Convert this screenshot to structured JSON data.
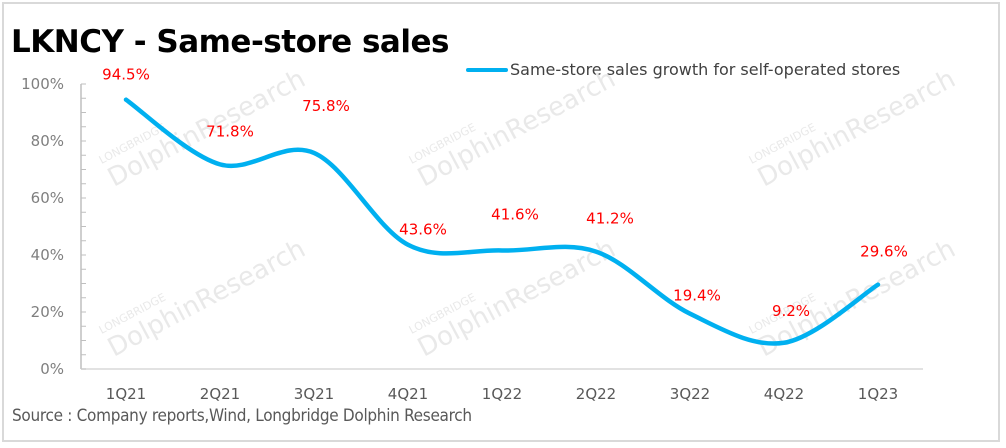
{
  "title": "LKNCY - Same-store sales",
  "source": "Source : Company reports,Wind, Longbridge Dolphin Research",
  "watermark": {
    "line1": "LONGBRIDGE",
    "line2": "DolphinResearch"
  },
  "colors": {
    "series": "#00b0f0",
    "data_label": "#ff0000",
    "axis": "#bfbfbf",
    "tick_text": "#7f7f7f"
  },
  "chart_data": {
    "type": "line",
    "title": "LKNCY - Same-store sales",
    "xlabel": "",
    "ylabel": "",
    "categories": [
      "1Q21",
      "2Q21",
      "3Q21",
      "4Q21",
      "1Q22",
      "2Q22",
      "3Q22",
      "4Q22",
      "1Q23"
    ],
    "series": [
      {
        "name": "Same-store sales growth for self-operated stores",
        "values": [
          94.5,
          71.8,
          75.8,
          43.6,
          41.6,
          41.2,
          19.4,
          9.2,
          29.6
        ],
        "labels": [
          "94.5%",
          "71.8%",
          "75.8%",
          "43.6%",
          "41.6%",
          "41.2%",
          "19.4%",
          "9.2%",
          "29.6%"
        ]
      }
    ],
    "ylim": [
      0,
      100
    ],
    "yticks": [
      0,
      20,
      40,
      60,
      80,
      100
    ],
    "ytick_labels": [
      "0%",
      "20%",
      "40%",
      "60%",
      "80%",
      "100%"
    ],
    "minor_tick_step": 5,
    "smooth": true,
    "grid": false,
    "legend": "top-right"
  }
}
